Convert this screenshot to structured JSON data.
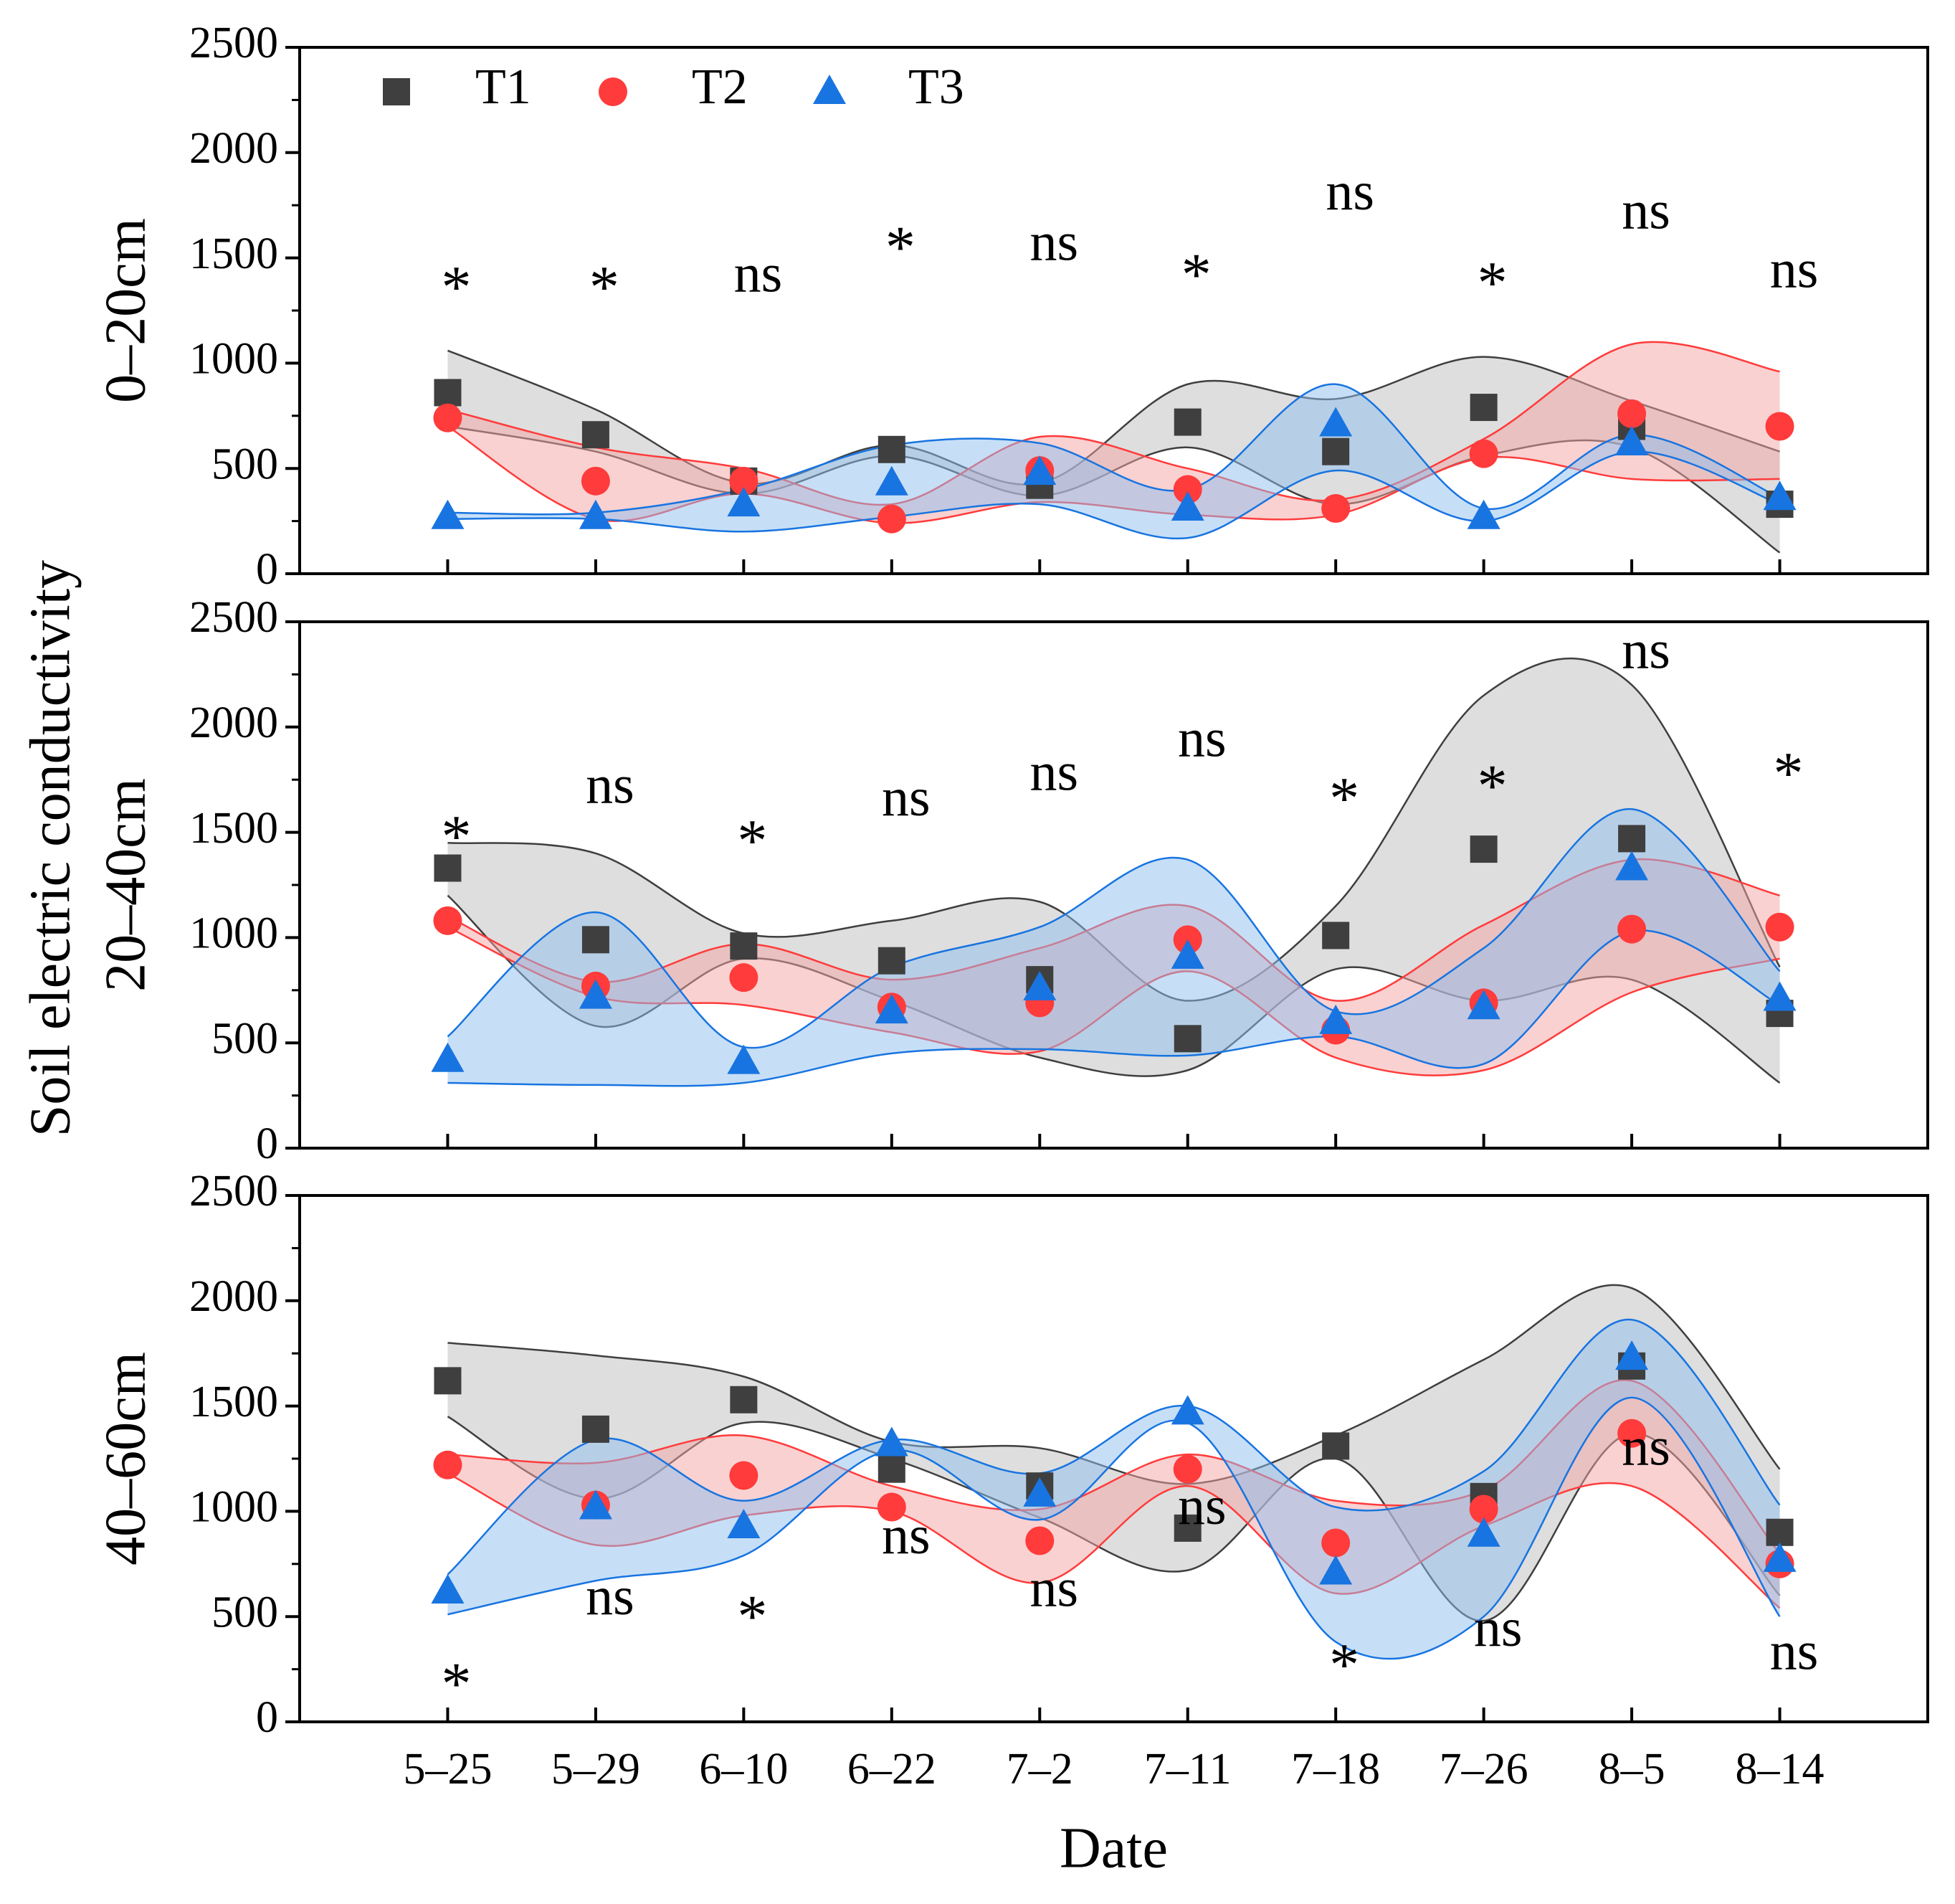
{
  "figure_ylabel": "Soil electric conductivity",
  "chart_data": [
    {
      "type": "scatter",
      "panel_label": "0–20cm",
      "ylim": [
        0,
        2500
      ],
      "yticks": [
        0,
        500,
        1000,
        1500,
        2000,
        2500
      ],
      "yticks_minor": [
        250,
        750,
        1250,
        1750,
        2250
      ],
      "legend": "upper left",
      "series": [
        {
          "name": "T1",
          "color": "#3f3f3f",
          "band_color": "#bdbdbd",
          "marker": "square",
          "values": [
            860,
            660,
            440,
            590,
            420,
            720,
            580,
            790,
            700,
            330
          ],
          "band_upper": [
            1060,
            780,
            430,
            610,
            430,
            900,
            830,
            1030,
            820,
            580
          ],
          "band_lower": [
            700,
            580,
            380,
            560,
            370,
            600,
            330,
            560,
            600,
            100
          ]
        },
        {
          "name": "T2",
          "color": "#ff3b3b",
          "band_color": "#f4a3a3",
          "marker": "circle",
          "values": [
            740,
            440,
            440,
            260,
            490,
            400,
            310,
            570,
            760,
            700
          ],
          "band_upper": [
            780,
            600,
            500,
            330,
            650,
            500,
            350,
            640,
            1090,
            960
          ],
          "band_lower": [
            700,
            260,
            380,
            240,
            340,
            280,
            280,
            550,
            450,
            450
          ]
        },
        {
          "name": "T3",
          "color": "#1874e0",
          "band_color": "#8ec0f0",
          "marker": "triangle",
          "values": [
            270,
            270,
            330,
            430,
            480,
            310,
            710,
            270,
            620,
            360
          ],
          "band_upper": [
            290,
            290,
            400,
            610,
            620,
            400,
            900,
            310,
            660,
            360
          ],
          "band_lower": [
            260,
            260,
            200,
            270,
            330,
            170,
            490,
            250,
            580,
            330
          ]
        }
      ],
      "annotations": [
        {
          "text": "*",
          "y": 1380
        },
        {
          "text": "*",
          "y": 1380
        },
        {
          "text": "ns",
          "y": 1400
        },
        {
          "text": "*",
          "y": 1570
        },
        {
          "text": "ns",
          "y": 1550
        },
        {
          "text": "*",
          "y": 1440
        },
        {
          "text": "ns",
          "y": 1790
        },
        {
          "text": "*",
          "y": 1400
        },
        {
          "text": "ns",
          "y": 1700
        },
        {
          "text": "ns",
          "y": 1420
        }
      ]
    },
    {
      "type": "scatter",
      "panel_label": "20–40cm",
      "ylim": [
        0,
        2500
      ],
      "yticks": [
        0,
        500,
        1000,
        1500,
        2000,
        2500
      ],
      "yticks_minor": [
        250,
        750,
        1250,
        1750,
        2250
      ],
      "series": [
        {
          "color": "#3f3f3f",
          "band_color": "#bdbdbd",
          "marker": "square",
          "values": [
            1330,
            990,
            960,
            890,
            800,
            520,
            1010,
            1420,
            1470,
            640
          ],
          "band_upper": [
            1450,
            1400,
            1020,
            1080,
            1170,
            700,
            1150,
            2150,
            2200,
            860
          ],
          "band_lower": [
            1200,
            580,
            900,
            700,
            430,
            370,
            850,
            700,
            800,
            310
          ]
        },
        {
          "color": "#ff3b3b",
          "band_color": "#f4a3a3",
          "marker": "circle",
          "values": [
            1080,
            770,
            810,
            670,
            690,
            990,
            560,
            690,
            1040,
            1050
          ],
          "band_upper": [
            1100,
            790,
            970,
            800,
            950,
            1150,
            700,
            1060,
            1370,
            1200
          ],
          "band_lower": [
            1050,
            720,
            680,
            550,
            460,
            840,
            430,
            370,
            740,
            900
          ]
        },
        {
          "color": "#1874e0",
          "band_color": "#8ec0f0",
          "marker": "triangle",
          "values": [
            420,
            720,
            410,
            650,
            760,
            910,
            600,
            670,
            1330,
            710
          ],
          "band_upper": [
            530,
            1120,
            480,
            860,
            1050,
            1370,
            650,
            950,
            1610,
            840
          ],
          "band_lower": [
            310,
            300,
            310,
            450,
            470,
            440,
            530,
            400,
            1030,
            680
          ]
        }
      ],
      "annotations": [
        {
          "text": "*",
          "y": 1500
        },
        {
          "text": "ns",
          "y": 1700
        },
        {
          "text": "*",
          "y": 1480
        },
        {
          "text": "ns",
          "y": 1640
        },
        {
          "text": "ns",
          "y": 1760
        },
        {
          "text": "ns",
          "y": 1920
        },
        {
          "text": "*",
          "y": 1680
        },
        {
          "text": "*",
          "y": 1740
        },
        {
          "text": "ns",
          "y": 2340
        },
        {
          "text": "*",
          "y": 1800
        }
      ]
    },
    {
      "type": "scatter",
      "panel_label": "40–60cm",
      "ylim": [
        0,
        2500
      ],
      "yticks": [
        0,
        500,
        1000,
        1500,
        2000,
        2500
      ],
      "yticks_minor": [
        250,
        750,
        1250,
        1750,
        2250
      ],
      "xlabel": "Date",
      "categories": [
        "5–25",
        "5–29",
        "6–10",
        "6–22",
        "7–2",
        "7–11",
        "7–18",
        "7–26",
        "8–5",
        "8–14"
      ],
      "series": [
        {
          "color": "#3f3f3f",
          "band_color": "#bdbdbd",
          "marker": "square",
          "values": [
            1620,
            1390,
            1530,
            1200,
            1120,
            920,
            1310,
            1070,
            1690,
            900
          ],
          "band_upper": [
            1800,
            1740,
            1640,
            1330,
            1300,
            1130,
            1360,
            1720,
            2060,
            1200
          ],
          "band_lower": [
            1450,
            1060,
            1420,
            1250,
            970,
            720,
            1250,
            480,
            1370,
            600
          ]
        },
        {
          "color": "#ff3b3b",
          "band_color": "#f4a3a3",
          "marker": "circle",
          "values": [
            1220,
            1030,
            1170,
            1020,
            860,
            1200,
            850,
            1010,
            1370,
            750
          ],
          "band_upper": [
            1270,
            1230,
            1360,
            1120,
            1010,
            1270,
            1050,
            1100,
            1620,
            800
          ],
          "band_lower": [
            1180,
            840,
            980,
            1000,
            660,
            1120,
            610,
            930,
            1120,
            540
          ]
        },
        {
          "color": "#1874e0",
          "band_color": "#8ec0f0",
          "marker": "triangle",
          "values": [
            620,
            1020,
            930,
            1320,
            1080,
            1470,
            710,
            890,
            1730,
            770
          ],
          "band_upper": [
            700,
            1340,
            1050,
            1340,
            1180,
            1500,
            1020,
            1190,
            1910,
            1030
          ],
          "band_lower": [
            510,
            670,
            790,
            1290,
            960,
            1420,
            380,
            500,
            1540,
            500
          ]
        }
      ],
      "annotations": [
        {
          "text": "*",
          "y": 200
        },
        {
          "text": "ns",
          "y": 570
        },
        {
          "text": "*",
          "y": 520
        },
        {
          "text": "ns",
          "y": 860
        },
        {
          "text": "ns",
          "y": 610
        },
        {
          "text": "ns",
          "y": 1000
        },
        {
          "text": "*",
          "y": 290
        },
        {
          "text": "ns",
          "y": 420
        },
        {
          "text": "ns",
          "y": 1280
        },
        {
          "text": "ns",
          "y": 310
        }
      ]
    }
  ]
}
